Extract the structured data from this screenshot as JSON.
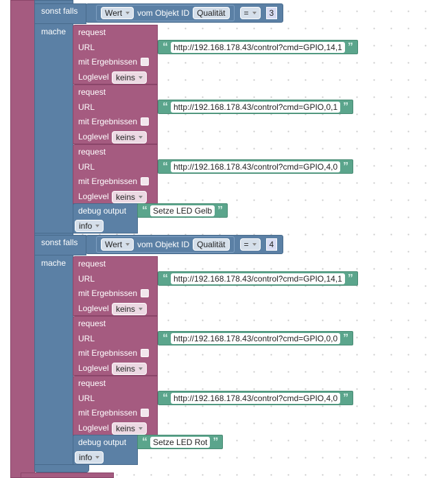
{
  "quote_open": "“",
  "quote_close": "”",
  "sections": [
    {
      "label": "sonst falls",
      "condition": {
        "field": "Wert",
        "of": "vom Objekt ID",
        "object": "Qualität",
        "operator": "=",
        "value": 3
      },
      "do_label": "mache",
      "requests": [
        {
          "title": "request",
          "url_label": "URL",
          "url": "http://192.168.178.43/control?cmd=GPIO,14,1",
          "results_label": "mit Ergebnissen",
          "loglevel_label": "Loglevel",
          "loglevel": "keins"
        },
        {
          "title": "request",
          "url_label": "URL",
          "url": "http://192.168.178.43/control?cmd=GPIO,0,1",
          "results_label": "mit Ergebnissen",
          "loglevel_label": "Loglevel",
          "loglevel": "keins"
        },
        {
          "title": "request",
          "url_label": "URL",
          "url": "http://192.168.178.43/control?cmd=GPIO,4,0",
          "results_label": "mit Ergebnissen",
          "loglevel_label": "Loglevel",
          "loglevel": "keins"
        }
      ],
      "debug": {
        "title": "debug output",
        "text": "Setze LED Gelb",
        "level": "info"
      }
    },
    {
      "label": "sonst falls",
      "condition": {
        "field": "Wert",
        "of": "vom Objekt ID",
        "object": "Qualität",
        "operator": "=",
        "value": 4
      },
      "do_label": "mache",
      "requests": [
        {
          "title": "request",
          "url_label": "URL",
          "url": "http://192.168.178.43/control?cmd=GPIO,14,1",
          "results_label": "mit Ergebnissen",
          "loglevel_label": "Loglevel",
          "loglevel": "keins"
        },
        {
          "title": "request",
          "url_label": "URL",
          "url": "http://192.168.178.43/control?cmd=GPIO,0,0",
          "results_label": "mit Ergebnissen",
          "loglevel_label": "Loglevel",
          "loglevel": "keins"
        },
        {
          "title": "request",
          "url_label": "URL",
          "url": "http://192.168.178.43/control?cmd=GPIO,4,0",
          "results_label": "mit Ergebnissen",
          "loglevel_label": "Loglevel",
          "loglevel": "keins"
        }
      ],
      "debug": {
        "title": "debug output",
        "text": "Setze LED Rot",
        "level": "info"
      }
    }
  ]
}
